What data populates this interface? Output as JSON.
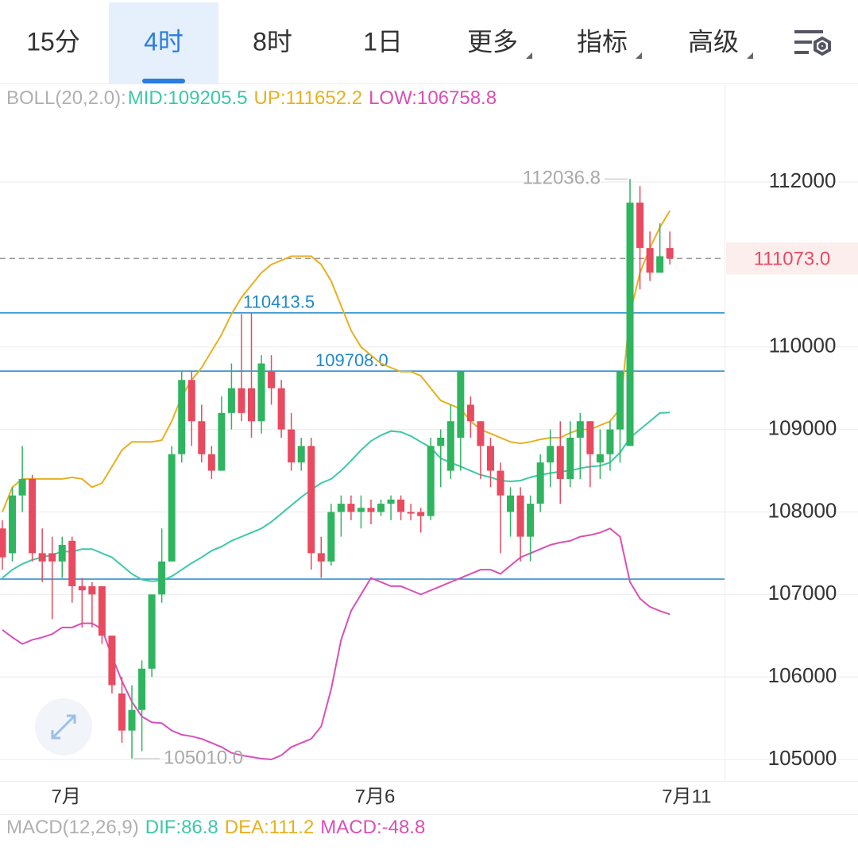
{
  "tabs": [
    {
      "label": "15分"
    },
    {
      "label": "4时",
      "selected": true
    },
    {
      "label": "8时"
    },
    {
      "label": "1日"
    },
    {
      "label": "更多",
      "dropdown": true
    },
    {
      "label": "指标",
      "dropdown": true
    },
    {
      "label": "高级",
      "dropdown": true
    }
  ],
  "chart_data": {
    "type": "candlestick",
    "legend": [
      "BOLL(20,2.0):",
      "MID:109205.5",
      "UP:111652.2",
      "LOW:106758.8"
    ],
    "legend_colors": [
      "#b0b0b0",
      "#3cc8a8",
      "#e8b020",
      "#d94fb8"
    ],
    "macd_legend": [
      "MACD(12,26,9)",
      "DIF:86.8",
      "DEA:111.2",
      "MACD:-48.8"
    ],
    "categories": [
      null,
      null,
      null,
      null,
      null,
      null,
      "7月",
      null,
      null,
      null,
      null,
      null,
      null,
      null,
      null,
      null,
      null,
      null,
      null,
      null,
      null,
      null,
      null,
      null,
      null,
      null,
      null,
      null,
      null,
      null,
      null,
      null,
      null,
      null,
      null,
      null,
      null,
      "7月6",
      null,
      null,
      null,
      null,
      null,
      null,
      null,
      null,
      null,
      null,
      null,
      null,
      null,
      null,
      null,
      null,
      null,
      null,
      null,
      null,
      null,
      null,
      null,
      null,
      null,
      null,
      null,
      null,
      null,
      "7月11"
    ],
    "open": [
      107800,
      107500,
      108200,
      108400,
      107500,
      107500,
      107400,
      107650,
      107100,
      107100,
      107100,
      106500,
      105800,
      105350,
      105600,
      106100,
      107000,
      107400,
      108700,
      109600,
      109100,
      108700,
      108500,
      109200,
      109500,
      109500,
      109100,
      109700,
      109500,
      109000,
      108600,
      108800,
      107500,
      107400,
      108000,
      108100,
      108000,
      108050,
      108000,
      108100,
      108150,
      108000,
      108000,
      107950,
      108800,
      108500,
      108900,
      109300,
      109100,
      108800,
      108500,
      108000,
      108200,
      107700,
      108100,
      108600,
      108800,
      108400,
      108900,
      109100,
      108600,
      108700,
      109000,
      108800,
      111750,
      111200,
      110900,
      111200
    ],
    "high": [
      107900,
      108300,
      108800,
      108450,
      107800,
      107700,
      107700,
      107700,
      107200,
      107150,
      107100,
      106500,
      106000,
      105900,
      106200,
      107000,
      107800,
      108800,
      109700,
      109700,
      109300,
      108800,
      109400,
      109800,
      110400,
      110413.5,
      109900,
      109900,
      109600,
      109200,
      108900,
      108900,
      107700,
      108100,
      108200,
      108200,
      108200,
      108150,
      108150,
      108200,
      108200,
      108100,
      108050,
      108900,
      109000,
      109300,
      109700,
      109400,
      109100,
      108900,
      108600,
      108300,
      108300,
      108200,
      108700,
      109000,
      109100,
      109100,
      109200,
      109100,
      109000,
      109100,
      109700,
      112036.8,
      111950,
      111400,
      111500,
      111400
    ],
    "low": [
      107300,
      107400,
      108000,
      107400,
      107150,
      106700,
      107200,
      106900,
      106600,
      106600,
      106400,
      105800,
      105200,
      105010,
      105100,
      106000,
      106900,
      107400,
      108600,
      108800,
      108600,
      108400,
      108500,
      109000,
      109100,
      108900,
      108950,
      109300,
      108900,
      108500,
      108500,
      107300,
      107200,
      107350,
      107700,
      107900,
      107800,
      107850,
      107950,
      107900,
      107900,
      107900,
      107750,
      107900,
      108300,
      108400,
      108500,
      108900,
      108400,
      108300,
      107500,
      107700,
      107400,
      107400,
      108000,
      108300,
      108100,
      108300,
      108400,
      108300,
      108400,
      108500,
      108600,
      108800,
      110700,
      110800,
      110900,
      111000
    ],
    "close": [
      107450,
      108200,
      108400,
      107500,
      107400,
      107400,
      107600,
      107100,
      107050,
      107000,
      106500,
      105900,
      105350,
      105600,
      106100,
      107000,
      107400,
      108700,
      109600,
      109100,
      108700,
      108500,
      109200,
      109500,
      109200,
      109100,
      109800,
      109500,
      109000,
      108600,
      108800,
      107500,
      107400,
      108000,
      108100,
      108000,
      108050,
      108000,
      108100,
      108150,
      108000,
      107980,
      107950,
      108800,
      108900,
      109100,
      109700,
      109100,
      108800,
      108500,
      108200,
      108200,
      107700,
      108100,
      108600,
      108800,
      108400,
      108900,
      109100,
      108700,
      108700,
      109000,
      109700,
      111750,
      111200,
      110900,
      111100,
      111073
    ],
    "up_color": "#2fb45f",
    "down_color": "#e84a5f",
    "bands": [
      {
        "color": "#e8b020",
        "values": [
          108000,
          108300,
          108400,
          108400,
          108400,
          108400,
          108400,
          108420,
          108400,
          108300,
          108350,
          108550,
          108750,
          108850,
          108850,
          108850,
          108870,
          109100,
          109400,
          109600,
          109750,
          109950,
          110150,
          110400,
          110600,
          110750,
          110900,
          111000,
          111050,
          111100,
          111100,
          111100,
          111000,
          110800,
          110500,
          110200,
          110000,
          109900,
          109800,
          109750,
          109700,
          109700,
          109650,
          109500,
          109350,
          109300,
          109250,
          109100,
          109000,
          108950,
          108900,
          108850,
          108830,
          108850,
          108880,
          108900,
          108900,
          108960,
          109000,
          109000,
          109050,
          109100,
          109250,
          110400,
          110900,
          111200,
          111450,
          111652.2
        ]
      },
      {
        "color": "#3cc8a8",
        "values": [
          107200,
          107300,
          107370,
          107420,
          107450,
          107480,
          107520,
          107520,
          107550,
          107550,
          107500,
          107450,
          107350,
          107250,
          107180,
          107160,
          107170,
          107220,
          107300,
          107380,
          107450,
          107530,
          107580,
          107650,
          107700,
          107750,
          107800,
          107880,
          107980,
          108080,
          108180,
          108270,
          108350,
          108400,
          108500,
          108620,
          108750,
          108860,
          108930,
          108980,
          108970,
          108920,
          108850,
          108780,
          108650,
          108600,
          108550,
          108500,
          108450,
          108420,
          108380,
          108370,
          108380,
          108420,
          108450,
          108470,
          108490,
          108500,
          108530,
          108550,
          108560,
          108600,
          108720,
          108900,
          109000,
          109100,
          109200,
          109205.5
        ]
      },
      {
        "color": "#d94fb8",
        "values": [
          106570,
          106480,
          106400,
          106450,
          106480,
          106520,
          106600,
          106600,
          106650,
          106650,
          106580,
          106250,
          105950,
          105700,
          105520,
          105450,
          105440,
          105350,
          105300,
          105280,
          105250,
          105200,
          105150,
          105080,
          105050,
          105030,
          105010,
          105000,
          105050,
          105150,
          105200,
          105250,
          105400,
          105850,
          106450,
          106800,
          107000,
          107200,
          107150,
          107100,
          107100,
          107050,
          107000,
          107050,
          107100,
          107150,
          107200,
          107250,
          107300,
          107300,
          107250,
          107350,
          107450,
          107500,
          107550,
          107600,
          107630,
          107650,
          107700,
          107720,
          107750,
          107800,
          107700,
          107150,
          106950,
          106850,
          106800,
          106758.8
        ]
      }
    ],
    "high_marker": {
      "index": 63,
      "value": 112036.8,
      "label": "112036.8"
    },
    "low_marker": {
      "index": 13,
      "value": 105010,
      "label": "105010.0"
    },
    "levels": [
      {
        "value": 110413.5,
        "label": "110413.5"
      },
      {
        "value": 109708,
        "label": "109708.0"
      },
      {
        "value": 107186
      }
    ],
    "last_price": {
      "value": 111073,
      "label": "111073.0"
    },
    "ylim": [
      104740,
      113195
    ],
    "yticks": [
      105000,
      106000,
      107000,
      108000,
      109000,
      110000,
      112000
    ],
    "grid": true
  }
}
